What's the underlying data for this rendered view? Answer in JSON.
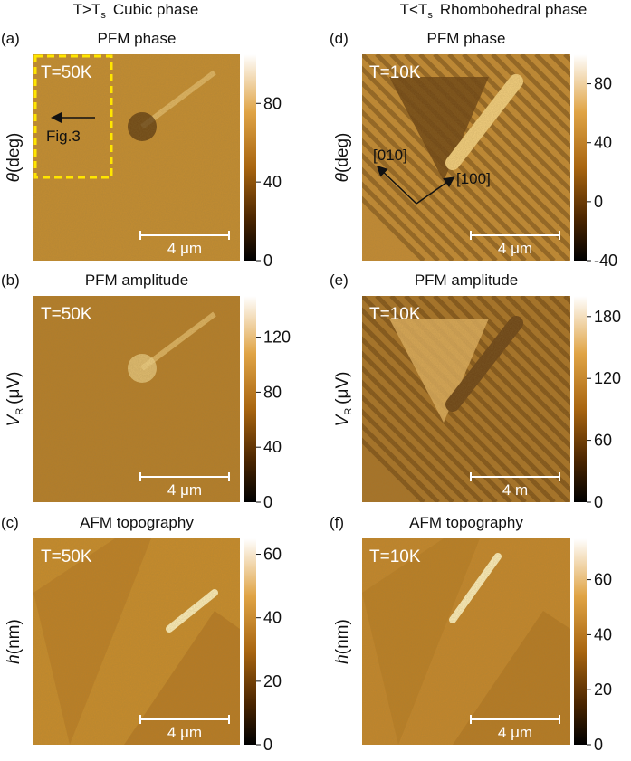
{
  "headers": [
    {
      "lead": "T>T",
      "sub": "s",
      "rest": "Cubic phase"
    },
    {
      "lead": "T<T",
      "sub": "s",
      "rest": "Rhombohedral phase"
    }
  ],
  "panels": [
    {
      "label": "(a)",
      "title": "PFM phase",
      "temp": "T=50K",
      "ylabel": {
        "symbol": "θ",
        "unit": "(deg)"
      },
      "colorbar": {
        "range": [
          0,
          105
        ],
        "ticks": [
          0,
          40,
          80
        ]
      },
      "scalebar": "4 μm",
      "note": "Fig.3"
    },
    {
      "label": "(b)",
      "title": "PFM amplitude",
      "temp": "T=50K",
      "ylabel": {
        "symbol": "V",
        "sub": "R",
        "unit": "(μV)"
      },
      "colorbar": {
        "range": [
          0,
          150
        ],
        "ticks": [
          0,
          40,
          80,
          120
        ]
      },
      "scalebar": "4 μm"
    },
    {
      "label": "(c)",
      "title": "AFM topography",
      "temp": "T=50K",
      "ylabel": {
        "symbol": "h",
        "unit": "(nm)"
      },
      "colorbar": {
        "range": [
          0,
          65
        ],
        "ticks": [
          0,
          20,
          40,
          60
        ]
      },
      "scalebar": "4 μm"
    },
    {
      "label": "(d)",
      "title": "PFM phase",
      "temp": "T=10K",
      "ylabel": {
        "symbol": "θ",
        "unit": "(deg)"
      },
      "colorbar": {
        "range": [
          -40,
          100
        ],
        "ticks": [
          -40,
          0,
          40,
          80
        ]
      },
      "scalebar": "4 μm",
      "directions": [
        "[010]",
        "[100]"
      ]
    },
    {
      "label": "(e)",
      "title": "PFM amplitude",
      "temp": "T=10K",
      "ylabel": {
        "symbol": "V",
        "sub": "R",
        "unit": "(μV)"
      },
      "colorbar": {
        "range": [
          0,
          200
        ],
        "ticks": [
          0,
          60,
          120,
          180
        ]
      },
      "scalebar": "4  m"
    },
    {
      "label": "(f)",
      "title": "AFM topography",
      "temp": "T=10K",
      "ylabel": {
        "symbol": "h",
        "unit": "(nm)"
      },
      "colorbar": {
        "range": [
          0,
          75
        ],
        "ticks": [
          0,
          20,
          40,
          60
        ]
      },
      "scalebar": "4 μm"
    }
  ]
}
